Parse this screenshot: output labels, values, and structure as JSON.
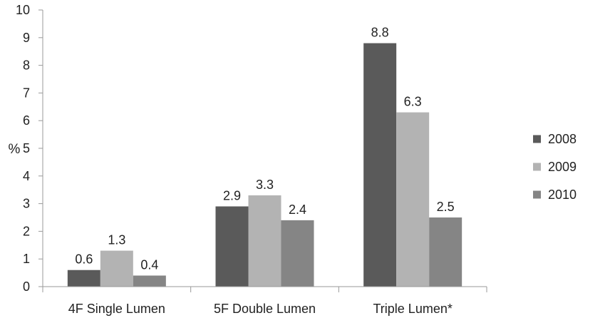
{
  "chart_data": {
    "type": "bar",
    "title": "",
    "xlabel": "",
    "ylabel": "%",
    "ylim": [
      0,
      10
    ],
    "yticks": [
      0,
      1,
      2,
      3,
      4,
      5,
      6,
      7,
      8,
      9,
      10
    ],
    "grid": false,
    "legend_position": "right",
    "categories": [
      "4F Single Lumen",
      "5F Double Lumen",
      "Triple Lumen*"
    ],
    "series": [
      {
        "name": "2008",
        "color": "#5a5a5a",
        "values": [
          0.6,
          2.9,
          8.8
        ]
      },
      {
        "name": "2009",
        "color": "#b3b3b3",
        "values": [
          1.3,
          3.3,
          6.3
        ]
      },
      {
        "name": "2010",
        "color": "#858585",
        "values": [
          0.4,
          2.4,
          2.5
        ]
      }
    ]
  }
}
